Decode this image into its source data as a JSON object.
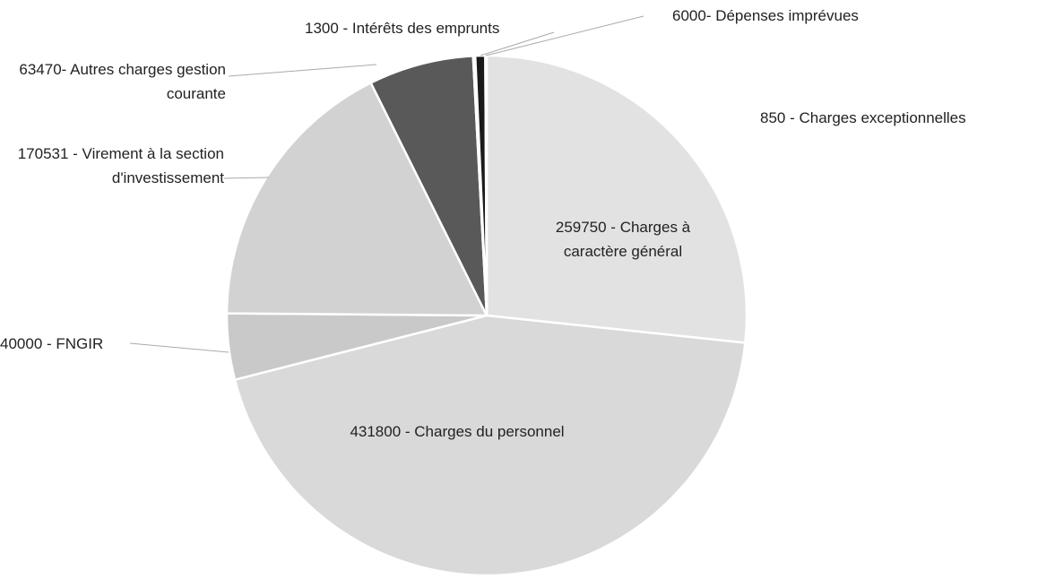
{
  "chart_data": {
    "type": "pie",
    "categories": [
      "259750 - Charges à caractère général",
      "431800 - Charges du personnel",
      "40000 - FNGIR",
      "170531 - Virement à la section d'investissement",
      "63470- Autres charges gestion courante",
      "1300 - Intérêts des emprunts",
      "6000- Dépenses imprévues",
      "850 - Charges exceptionnelles"
    ],
    "values": [
      259750,
      431800,
      40000,
      170531,
      63470,
      1300,
      6000,
      850
    ],
    "colors": [
      "#e2e2e2",
      "#d9d9d9",
      "#c9c9c9",
      "#d2d2d2",
      "#595959",
      "#a6a6a6",
      "#1a1a1a",
      "#efefef"
    ]
  }
}
